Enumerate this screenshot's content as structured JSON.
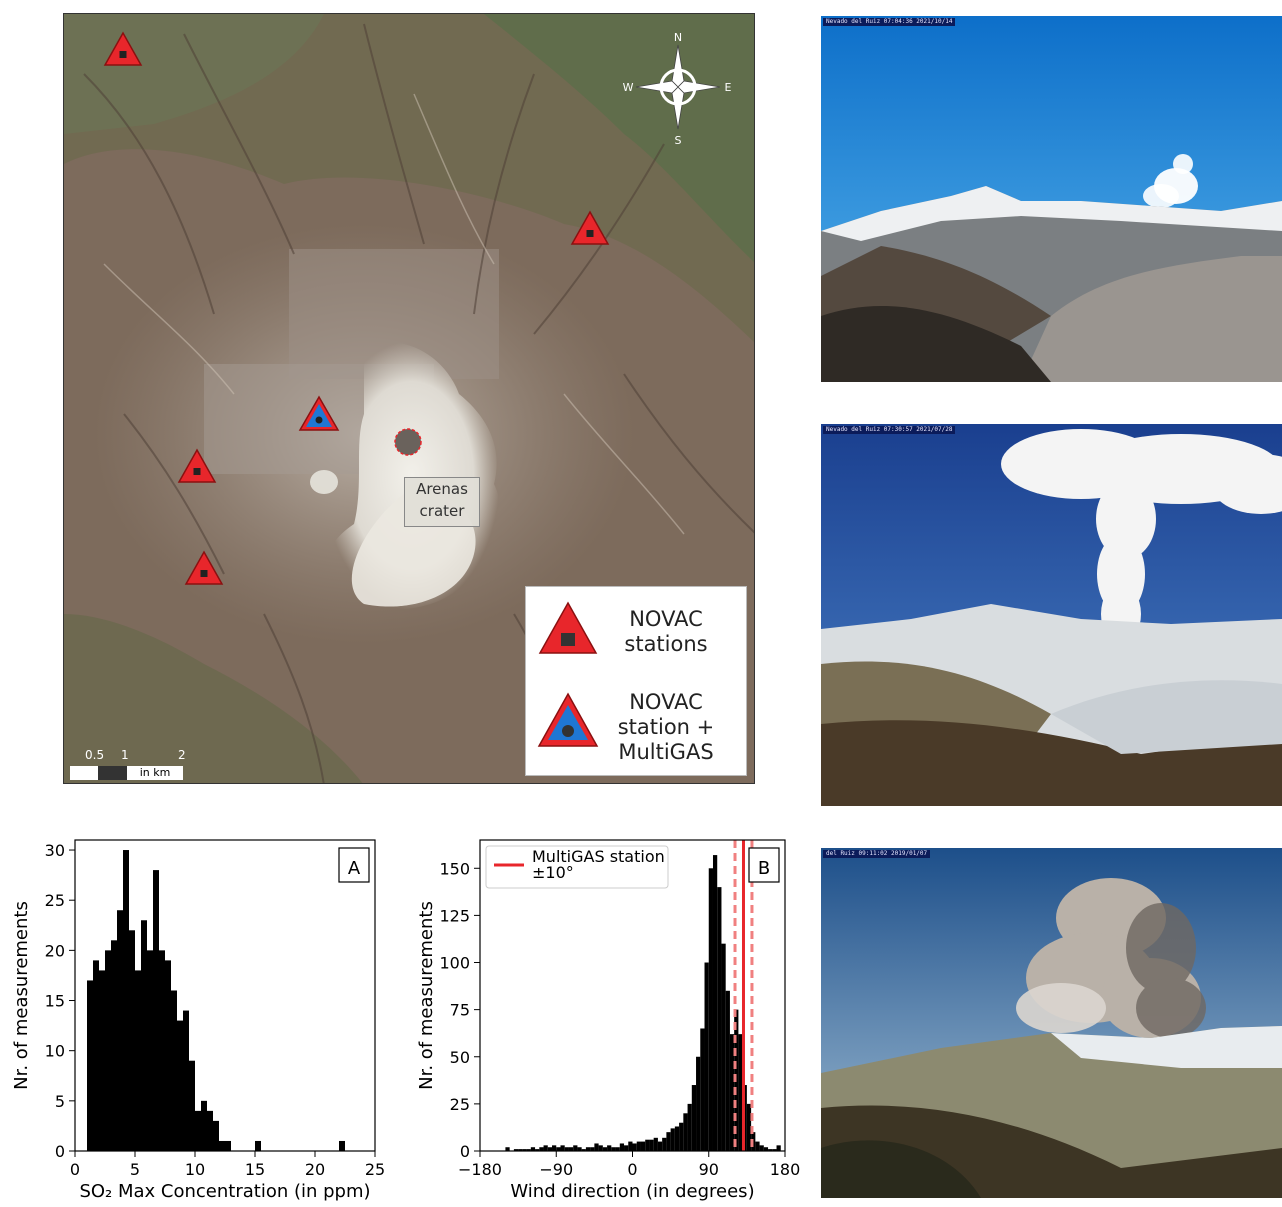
{
  "map": {
    "crater_label_line1": "Arenas",
    "crater_label_line2": "crater",
    "compass": {
      "n": "N",
      "s": "S",
      "e": "E",
      "w": "W"
    },
    "legend": {
      "novac_line1": "NOVAC",
      "novac_line2": "stations",
      "multigas_line1": "NOVAC",
      "multigas_line2": "station +",
      "multigas_line3": "MultiGAS"
    },
    "scale": {
      "t1": "0.5",
      "t2": "1",
      "t3": "2",
      "unit": "in km"
    },
    "colors": {
      "station_fill": "#e8262b",
      "multigas_fill": "#1f77d4",
      "marker": "#222222"
    }
  },
  "photos": [
    {
      "stamp": "Nevado del Ruiz 07:04:36 2021/10/14"
    },
    {
      "stamp": "Nevado del Ruiz 07:30:57 2021/07/28"
    },
    {
      "stamp": "del Ruiz 09:11:02 2019/01/07"
    }
  ],
  "chart_data": [
    {
      "type": "bar",
      "panel_label": "A",
      "xlabel": "SO₂ Max Concentration (in ppm)",
      "ylabel": "Nr. of measurements",
      "xlim": [
        0,
        25
      ],
      "ylim": [
        0,
        31
      ],
      "xticks": [
        0,
        5,
        10,
        15,
        20,
        25
      ],
      "yticks": [
        0,
        5,
        10,
        15,
        20,
        25,
        30
      ],
      "bin_width": 0.5,
      "bin_starts": [
        1.0,
        1.5,
        2.0,
        2.5,
        3.0,
        3.5,
        4.0,
        4.5,
        5.0,
        5.5,
        6.0,
        6.5,
        7.0,
        7.5,
        8.0,
        8.5,
        9.0,
        9.5,
        10.0,
        10.5,
        11.0,
        11.5,
        12.0,
        12.5,
        15.0,
        22.0
      ],
      "values": [
        17,
        19,
        18,
        20,
        21,
        24,
        30,
        22,
        18,
        23,
        20,
        28,
        20,
        19,
        16,
        13,
        14,
        9,
        4,
        5,
        4,
        3,
        1,
        1,
        1,
        1
      ],
      "color": "#000000"
    },
    {
      "type": "bar",
      "panel_label": "B",
      "xlabel": "Wind direction (in degrees)",
      "ylabel": "Nr. of measurements",
      "xlim": [
        -180,
        180
      ],
      "ylim": [
        0,
        165
      ],
      "xticks": [
        -180,
        -90,
        0,
        90,
        180
      ],
      "yticks": [
        0,
        25,
        50,
        75,
        100,
        125,
        150
      ],
      "legend_label_line1": "MultiGAS station",
      "legend_label_line2": "±10°",
      "multigas_direction": 131,
      "multigas_band": [
        121,
        141
      ],
      "line_color": "#e8262b",
      "band_color": "#f08080",
      "bin_width": 5,
      "bin_starts": [
        -150,
        -140,
        -135,
        -130,
        -125,
        -120,
        -115,
        -110,
        -105,
        -100,
        -95,
        -90,
        -85,
        -80,
        -75,
        -70,
        -65,
        -60,
        -55,
        -50,
        -45,
        -40,
        -35,
        -30,
        -25,
        -20,
        -15,
        -10,
        -5,
        0,
        5,
        10,
        15,
        20,
        25,
        30,
        35,
        40,
        45,
        50,
        55,
        60,
        65,
        70,
        75,
        80,
        85,
        90,
        95,
        100,
        105,
        110,
        115,
        120,
        125,
        130,
        135,
        140,
        145,
        150,
        155,
        160,
        165,
        170
      ],
      "values": [
        2,
        1,
        1,
        1,
        1,
        2,
        1,
        2,
        3,
        2,
        3,
        2,
        3,
        2,
        2,
        3,
        2,
        1,
        2,
        2,
        4,
        3,
        2,
        3,
        2,
        2,
        4,
        3,
        5,
        4,
        5,
        5,
        6,
        6,
        7,
        5,
        7,
        10,
        12,
        13,
        15,
        20,
        25,
        35,
        50,
        65,
        100,
        150,
        157,
        140,
        110,
        85,
        62,
        75,
        62,
        35,
        25,
        10,
        5,
        3,
        2,
        1,
        1,
        3
      ],
      "color": "#000000"
    }
  ]
}
